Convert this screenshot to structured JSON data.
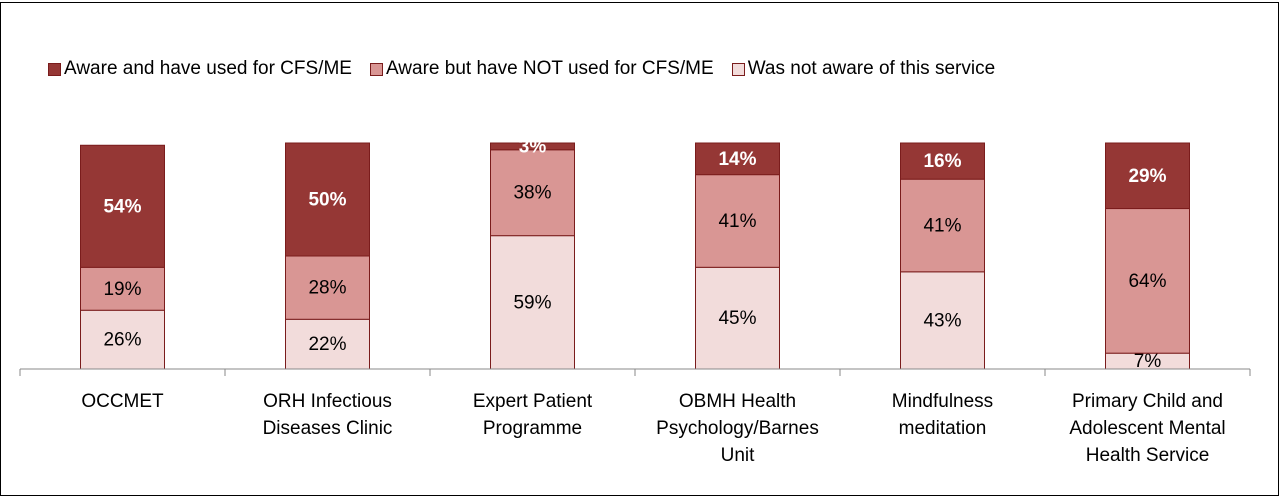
{
  "chart_data": {
    "type": "stacked-bar",
    "categories": [
      "OCCMET",
      "ORH Infectious Diseases Clinic",
      "Expert Patient Programme",
      "OBMH Health Psychology/Barnes Unit",
      "Mindfulness meditation",
      "Primary Child and Adolescent Mental Health Service"
    ],
    "series": [
      {
        "name": "Aware and have used for CFS/ME",
        "color": "#953735",
        "values": [
          54,
          50,
          3,
          14,
          16,
          29
        ],
        "value_labels": [
          "54%",
          "50%",
          "3%",
          "14%",
          "16%",
          "29%"
        ]
      },
      {
        "name": "Aware but have NOT used for CFS/ME",
        "color": "#d99694",
        "values": [
          19,
          28,
          38,
          41,
          41,
          64
        ],
        "value_labels": [
          "19%",
          "28%",
          "38%",
          "41%",
          "41%",
          "64%"
        ]
      },
      {
        "name": "Was not aware of this service",
        "color": "#f2dcdb",
        "values": [
          26,
          22,
          59,
          45,
          43,
          7
        ],
        "value_labels": [
          "26%",
          "22%",
          "59%",
          "45%",
          "43%",
          "7%"
        ]
      }
    ],
    "ylim": [
      0,
      100
    ]
  }
}
